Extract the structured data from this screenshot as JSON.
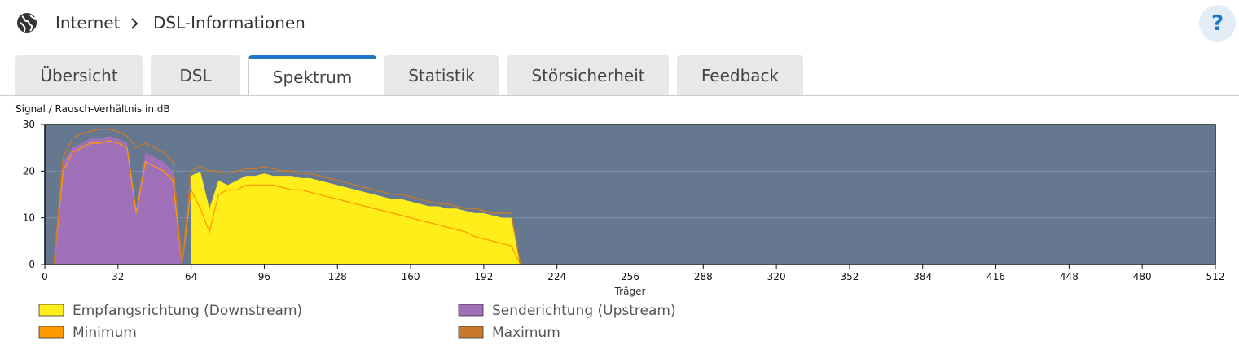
{
  "header": {
    "breadcrumb": [
      "Internet",
      "DSL-Informationen"
    ],
    "help": "?"
  },
  "tabs": [
    "Übersicht",
    "DSL",
    "Spektrum",
    "Statistik",
    "Störsicherheit",
    "Feedback"
  ],
  "active_tab": 2,
  "chart_data": {
    "type": "area",
    "ylabel": "Signal / Rausch-Verhältnis in dB",
    "xlabel": "Träger",
    "xlim": [
      0,
      512
    ],
    "ylim": [
      0,
      30
    ],
    "xticks": [
      0,
      32,
      64,
      96,
      128,
      160,
      192,
      224,
      256,
      288,
      320,
      352,
      384,
      416,
      448,
      480,
      512
    ],
    "yticks": [
      0,
      10,
      20,
      30
    ],
    "grid": true,
    "x": [
      4,
      8,
      12,
      16,
      20,
      24,
      28,
      32,
      36,
      40,
      44,
      48,
      52,
      56,
      60,
      64,
      68,
      72,
      76,
      80,
      84,
      88,
      92,
      96,
      100,
      104,
      108,
      112,
      116,
      120,
      124,
      128,
      132,
      136,
      140,
      144,
      148,
      152,
      156,
      160,
      164,
      168,
      172,
      176,
      180,
      184,
      188,
      192,
      196,
      200,
      204,
      208
    ],
    "series": [
      {
        "name": "Empfangsrichtung (Downstream)",
        "color": "#ffee1a",
        "style": "area",
        "values": [
          null,
          null,
          null,
          null,
          null,
          null,
          null,
          null,
          null,
          null,
          null,
          null,
          null,
          null,
          null,
          19,
          20,
          12,
          18,
          17,
          18,
          19,
          19,
          19.5,
          19,
          19,
          19,
          18.5,
          18.5,
          18,
          17.5,
          17,
          16.5,
          16,
          15.5,
          15,
          14.5,
          14,
          14,
          13.5,
          13,
          12.5,
          12.5,
          12,
          12,
          11.5,
          11,
          11,
          10.5,
          10,
          10,
          0
        ]
      },
      {
        "name": "Senderichtung (Upstream)",
        "color": "#a070b8",
        "style": "area",
        "values": [
          0,
          22,
          25,
          26,
          27,
          27,
          27.5,
          27,
          26,
          12,
          24,
          23,
          22,
          20,
          0,
          null,
          null,
          null,
          null,
          null,
          null,
          null,
          null,
          null,
          null,
          null,
          null,
          null,
          null,
          null,
          null,
          null,
          null,
          null,
          null,
          null,
          null,
          null,
          null,
          null,
          null,
          null,
          null,
          null,
          null,
          null,
          null,
          null,
          null,
          null,
          null,
          null
        ]
      },
      {
        "name": "Minimum",
        "color": "#ff9a00",
        "style": "line",
        "values": [
          0,
          20,
          24,
          25,
          26,
          26,
          26.5,
          26,
          25,
          11,
          22,
          21,
          20,
          18,
          0,
          16,
          12,
          7,
          15,
          16,
          16,
          17,
          17,
          17,
          17,
          16.5,
          16,
          16,
          15.5,
          15,
          14.5,
          14,
          13.5,
          13,
          12.5,
          12,
          11.5,
          11,
          10.5,
          10,
          9.5,
          9,
          8.5,
          8,
          7.5,
          7,
          6,
          5.5,
          5,
          4.5,
          4,
          0
        ]
      },
      {
        "name": "Maximum",
        "color": "#c87a2a",
        "style": "line",
        "values": [
          0,
          23,
          27,
          28,
          28.5,
          29,
          29,
          28.5,
          27.5,
          25,
          26,
          25,
          24,
          22,
          0,
          20,
          21,
          20,
          20,
          19.5,
          20,
          20.5,
          20.5,
          21,
          20.5,
          20,
          20,
          19.5,
          19.5,
          19,
          18.5,
          18,
          17.5,
          17,
          16.5,
          16,
          15.5,
          15,
          15,
          14.5,
          14,
          13.5,
          13,
          13,
          12.5,
          12,
          12,
          11.5,
          11,
          11,
          11,
          0
        ]
      }
    ]
  }
}
